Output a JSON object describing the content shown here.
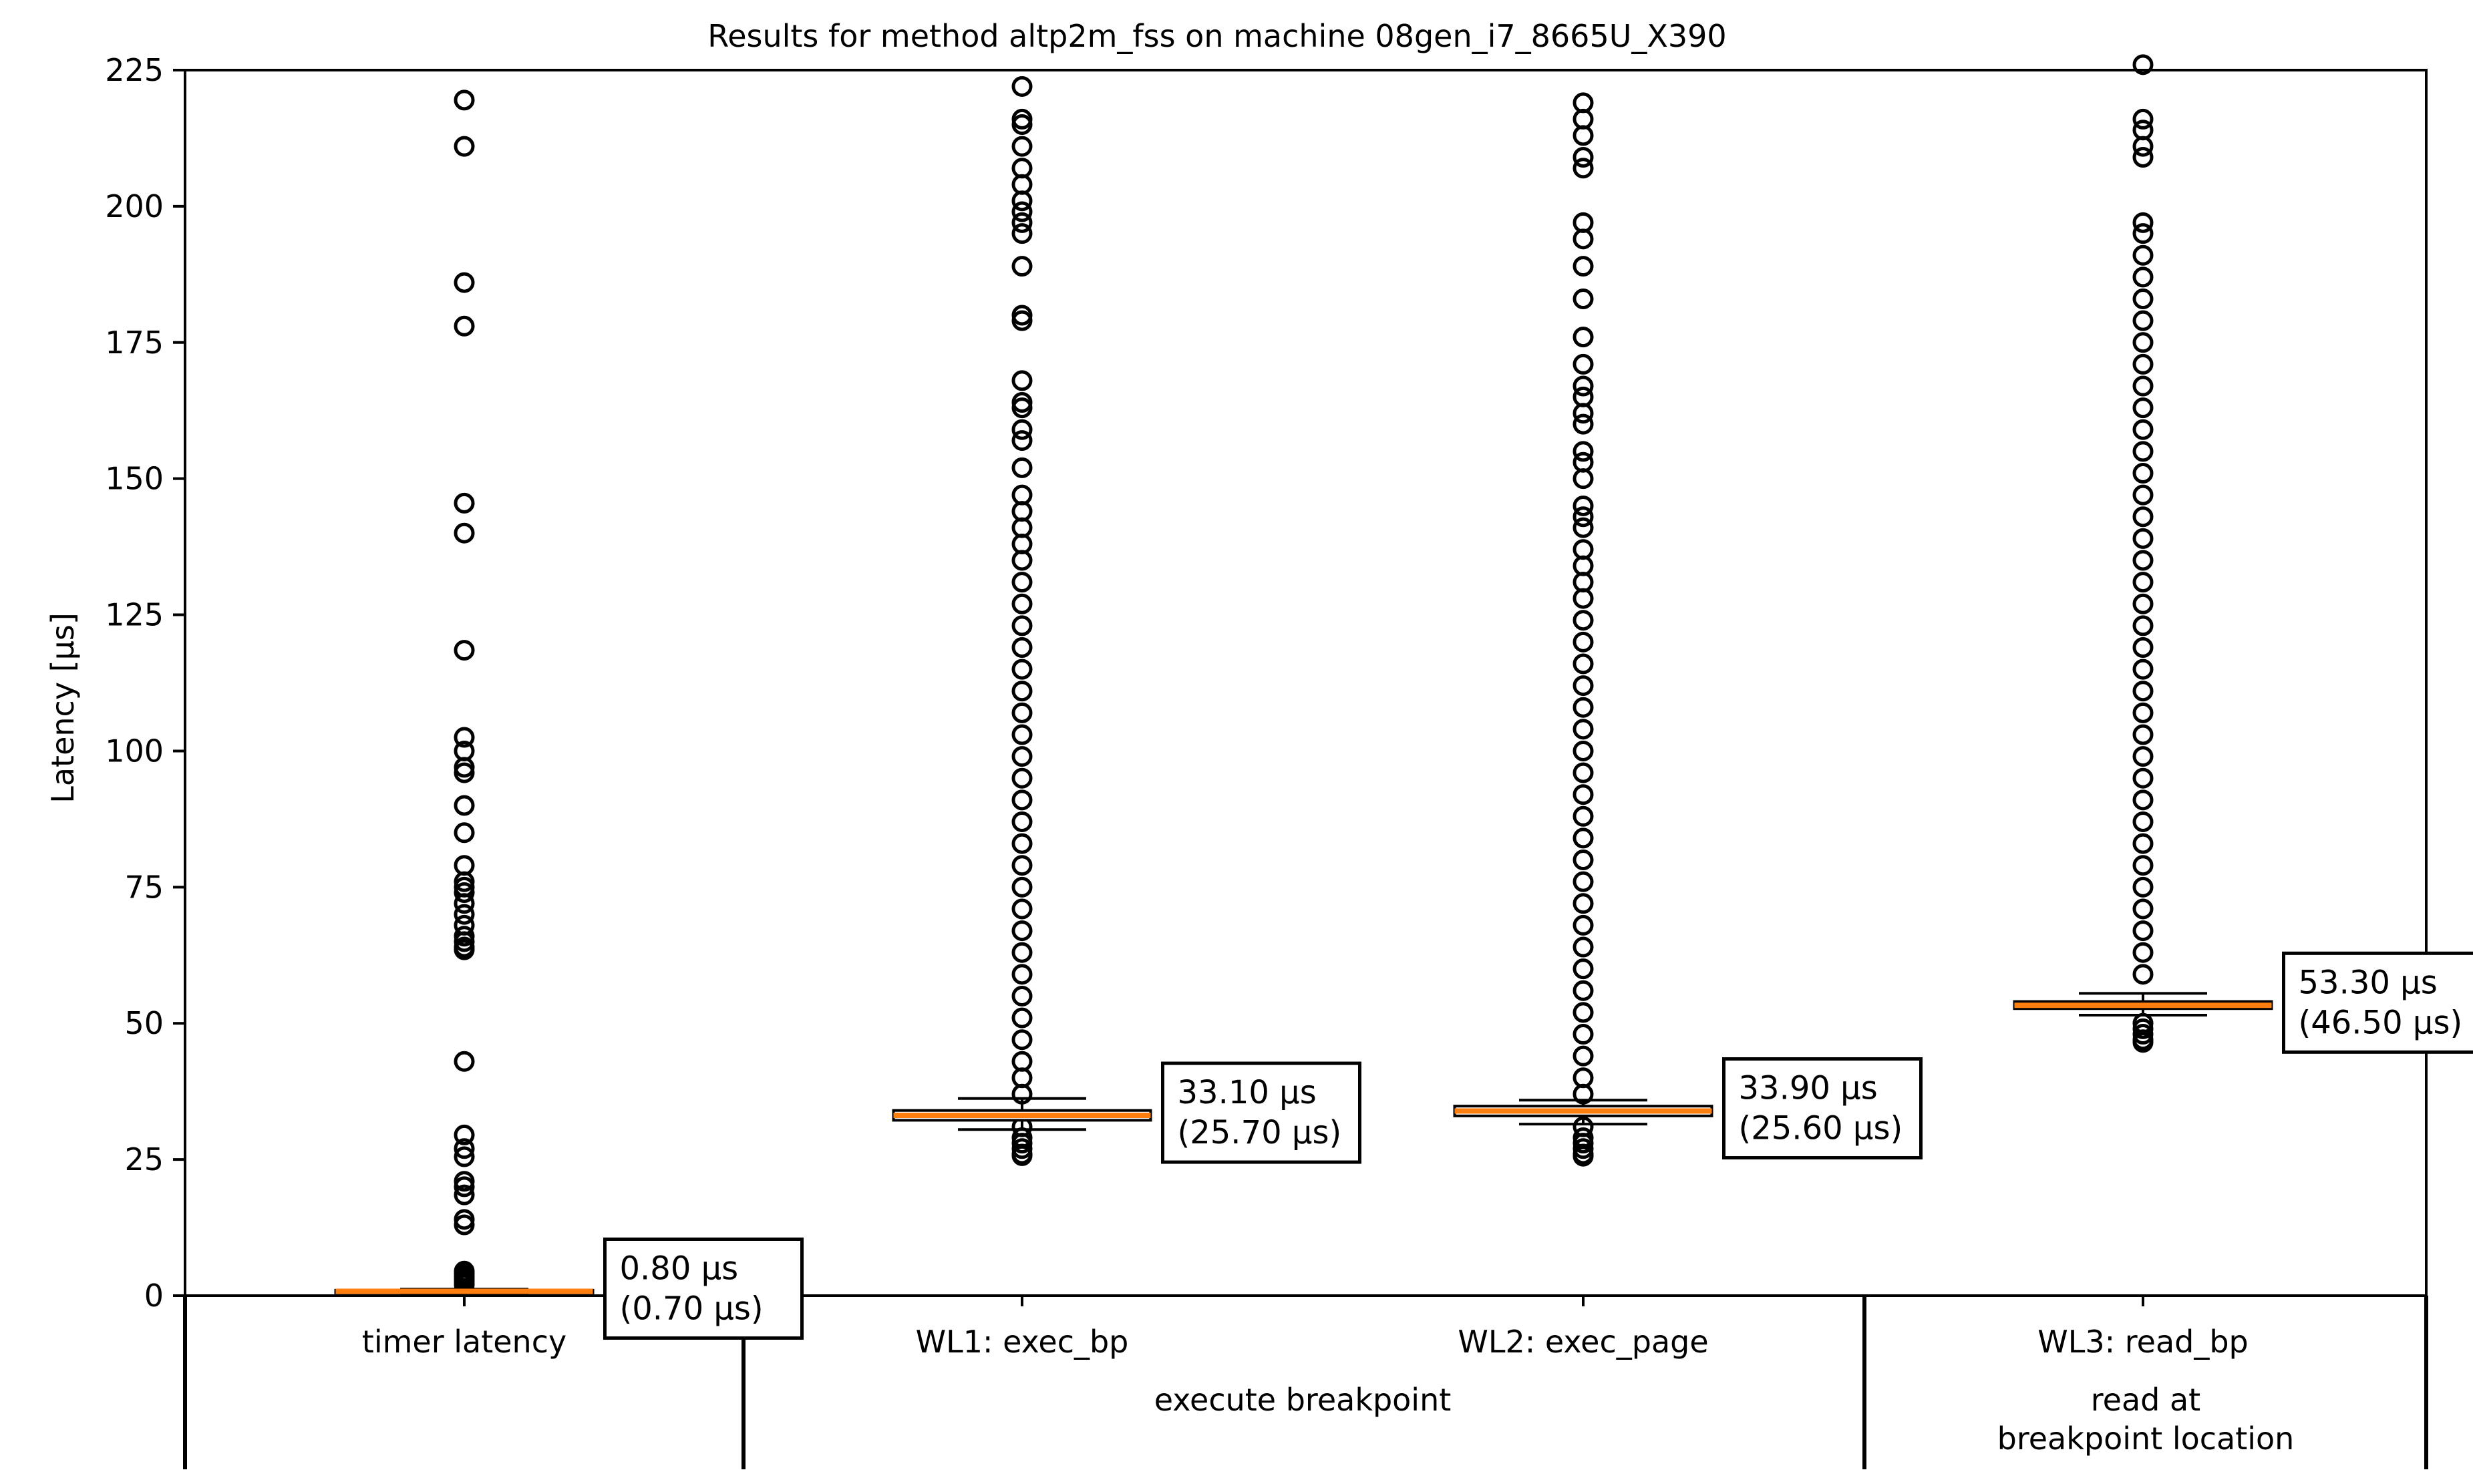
{
  "chart_data": {
    "type": "box",
    "title": "Results for method altp2m_fss on machine 08gen_i7_8665U_X390",
    "ylabel": "Latency [µs]",
    "ylim": [
      0,
      225
    ],
    "yticks": [
      0,
      25,
      50,
      75,
      100,
      125,
      150,
      175,
      200,
      225
    ],
    "grid": false,
    "categories": [
      "timer latency",
      "WL1: exec_bp",
      "WL2: exec_page",
      "WL3: read_bp"
    ],
    "groups": [
      {
        "label": "execute breakpoint",
        "categories": [
          "WL1: exec_bp",
          "WL2: exec_page"
        ]
      },
      {
        "label": "read at\nbreakpoint location",
        "categories": [
          "WL3: read_bp"
        ]
      }
    ],
    "boxes": [
      {
        "category": "timer latency",
        "median": 0.8,
        "min": 0.7,
        "q1": 0.6,
        "q3": 1.0,
        "whisker_low": 0.4,
        "whisker_high": 1.2,
        "annotation_median": "0.80 µs",
        "annotation_min": "(0.70 µs)",
        "outliers": [
          219.5,
          211,
          186,
          178,
          145.5,
          140,
          118.5,
          102.5,
          100,
          97,
          96,
          90,
          85,
          79,
          76,
          75,
          74,
          72,
          70,
          68,
          66,
          65,
          64,
          63.5,
          43,
          29.5,
          27,
          25.5,
          21,
          20,
          18.5,
          14,
          13,
          4.5,
          4,
          3.5,
          3,
          2.5,
          2
        ]
      },
      {
        "category": "WL1: exec_bp",
        "median": 33.1,
        "min": 25.7,
        "q1": 32.2,
        "q3": 34.0,
        "whisker_low": 30.5,
        "whisker_high": 36.2,
        "annotation_median": "33.10 µs",
        "annotation_min": "(25.70 µs)",
        "outliers": [
          222,
          216,
          215,
          211,
          207,
          204,
          201,
          199,
          197,
          195,
          189,
          180,
          179,
          168,
          164,
          163,
          159,
          157,
          152,
          147,
          144,
          141,
          138,
          135,
          131,
          127,
          123,
          119,
          115,
          111,
          107,
          103,
          99,
          95,
          91,
          87,
          83,
          79,
          75,
          71,
          67,
          63,
          59,
          55,
          51,
          47,
          43,
          40,
          37,
          31,
          29,
          28,
          27,
          26,
          25.7
        ]
      },
      {
        "category": "WL2: exec_page",
        "median": 33.9,
        "min": 25.6,
        "q1": 33.0,
        "q3": 34.8,
        "whisker_low": 31.5,
        "whisker_high": 35.9,
        "annotation_median": "33.90 µs",
        "annotation_min": "(25.60 µs)",
        "outliers": [
          219,
          216,
          213,
          209,
          207,
          197,
          194,
          189,
          183,
          176,
          171,
          167,
          165,
          162,
          160,
          155,
          153,
          150,
          145,
          143,
          141,
          137,
          134,
          131,
          128,
          124,
          120,
          116,
          112,
          108,
          104,
          100,
          96,
          92,
          88,
          84,
          80,
          76,
          72,
          68,
          64,
          60,
          56,
          52,
          48,
          44,
          40,
          37,
          31,
          29,
          28,
          27,
          26,
          25.6
        ]
      },
      {
        "category": "WL3: read_bp",
        "median": 53.3,
        "min": 46.5,
        "q1": 52.7,
        "q3": 54.0,
        "whisker_low": 51.5,
        "whisker_high": 55.5,
        "annotation_median": "53.30 µs",
        "annotation_min": "(46.50 µs)",
        "outliers": [
          226,
          216,
          214,
          211,
          209,
          197,
          195,
          191,
          187,
          183,
          179,
          175,
          171,
          167,
          163,
          159,
          155,
          151,
          147,
          143,
          139,
          135,
          131,
          127,
          123,
          119,
          115,
          111,
          107,
          103,
          99,
          95,
          91,
          87,
          83,
          79,
          75,
          71,
          67,
          63,
          59,
          50,
          49,
          48,
          47,
          46.5
        ]
      }
    ],
    "colors": {
      "median_line": "#ff7f0e",
      "box_edge": "#000000",
      "outlier_edge": "#000000"
    }
  }
}
